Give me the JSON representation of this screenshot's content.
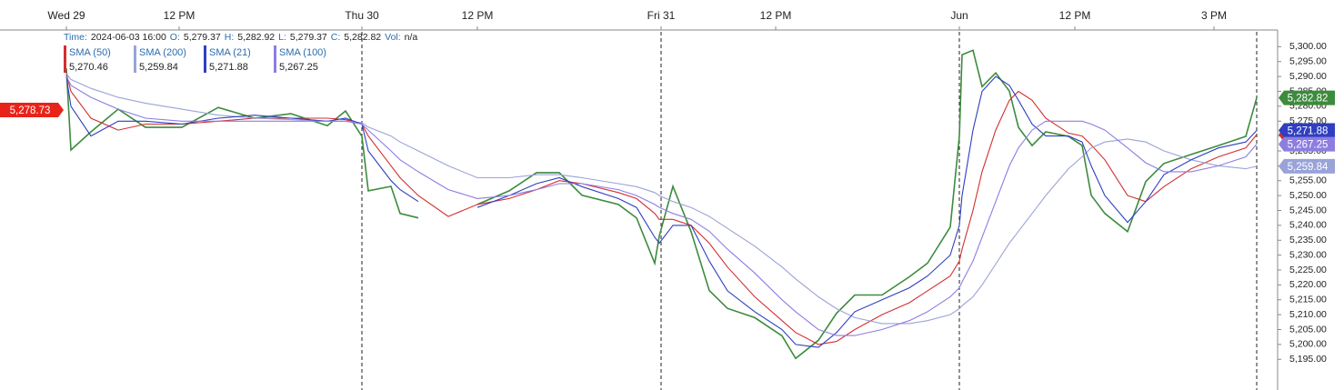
{
  "chart_data": {
    "type": "line",
    "header": {
      "time_label": "Time:",
      "time": "2024-06-03 16:00",
      "fields": [
        {
          "name": "O:",
          "value": "5,279.37"
        },
        {
          "name": "H:",
          "value": "5,282.92"
        },
        {
          "name": "L:",
          "value": "5,279.37"
        },
        {
          "name": "C:",
          "value": "5,282.82"
        },
        {
          "name": "Vol:",
          "value": "n/a"
        }
      ]
    },
    "x": [
      0,
      5,
      27,
      57,
      87,
      127,
      167,
      207,
      247,
      287,
      307,
      325,
      332,
      357,
      367,
      387,
      420,
      452,
      487,
      517,
      542,
      567,
      607,
      627,
      647,
      652,
      667,
      687,
      707,
      727,
      757,
      787,
      802,
      827,
      847,
      867,
      897,
      927,
      947,
      972,
      982,
      985,
      997,
      1007,
      1022,
      1037,
      1047,
      1062,
      1077,
      1102,
      1117,
      1127,
      1142,
      1167,
      1187,
      1207,
      1237,
      1267,
      1297,
      1309
    ],
    "series": [
      {
        "color": "#3d8b3d",
        "value_label": "5,282.82",
        "values": [
          5292.7,
          5265.3,
          5271.4,
          5279,
          5272.9,
          5272.9,
          5279.6,
          5276,
          5277.5,
          5273.5,
          5278.4,
          5269.9,
          5251.6,
          5253.1,
          5244,
          5242.5,
          null,
          5247,
          5251.6,
          5257.7,
          5257.7,
          5250.1,
          5247,
          5242.5,
          5227.3,
          5236.4,
          5253.1,
          5237.9,
          5218.1,
          5212.1,
          5209,
          5202.9,
          5195.3,
          5201.4,
          5210.5,
          5216.6,
          5216.6,
          5222.7,
          5227.3,
          5239.4,
          5269.9,
          5297.3,
          5298.8,
          5286.6,
          5291.2,
          5285.1,
          5272.9,
          5266.8,
          5271.4,
          5269.9,
          5266.8,
          5250.1,
          5244,
          5237.9,
          5254.7,
          5260.8,
          5263.8,
          5266.8,
          5269.9,
          5282.82
        ]
      },
      {
        "name": "SMA (50)",
        "color": "#d32f2f",
        "value_label": "5,270.46",
        "values": [
          5291,
          5285,
          5276,
          5272,
          5274,
          5274,
          5275,
          5276,
          5276,
          5276,
          5275.5,
          5274,
          5270,
          5260,
          5256,
          5250,
          5243,
          5247,
          5249,
          5252,
          5255,
          5254,
          5251,
          5249,
          5244,
          5242,
          5242,
          5240,
          5234,
          5226,
          5216,
          5208,
          5204,
          5200,
          5201,
          5205,
          5210,
          5214,
          5218,
          5223,
          5228,
          5232,
          5245,
          5258,
          5272,
          5282,
          5285,
          5282,
          5276,
          5271,
          5270,
          5267,
          5262,
          5250,
          5248,
          5253,
          5259,
          5263,
          5266,
          5270.46
        ]
      },
      {
        "name": "SMA (200)",
        "color": "#9aa3d8",
        "value_label": "5,259.84",
        "values": [
          5291,
          5289,
          5286,
          5283,
          5281,
          5279,
          5277,
          5276,
          5275.5,
          5275,
          5275,
          5274.5,
          5273,
          5270,
          5268,
          5265,
          5260,
          5256,
          5256,
          5257,
          5257,
          5256,
          5254,
          5253,
          5251,
          5250,
          5248,
          5246,
          5243,
          5239,
          5233,
          5226,
          5222,
          5216,
          5212,
          5209,
          5207,
          5207,
          5208,
          5210,
          5212,
          5213,
          5216,
          5220,
          5227,
          5234,
          5238,
          5244,
          5250,
          5259,
          5263,
          5266,
          5268,
          5269,
          5268,
          5265,
          5262,
          5260,
          5259,
          5259.84
        ]
      },
      {
        "name": "SMA (21)",
        "color": "#2f3fbf",
        "value_label": "5,271.88",
        "values": [
          5290,
          5280,
          5270,
          5275,
          5275,
          5274,
          5276,
          5277,
          5276,
          5275,
          5276,
          5274,
          5265,
          5255,
          5252,
          5248,
          null,
          5246,
          5250,
          5254,
          5256,
          5253,
          5249,
          5246,
          5236,
          5234,
          5240,
          5240,
          5228,
          5218,
          5211,
          5205,
          5200,
          5199,
          5204,
          5211,
          5215,
          5219,
          5223,
          5230,
          5240,
          5250,
          5272,
          5285,
          5290,
          5287,
          5282,
          5274,
          5270,
          5270,
          5268,
          5260,
          5250,
          5241,
          5248,
          5257,
          5262,
          5266,
          5268,
          5271.88
        ]
      },
      {
        "name": "SMA (100)",
        "color": "#8c7ee0",
        "value_label": "5,267.25",
        "values": [
          5290,
          5287,
          5283,
          5279,
          5276,
          5275,
          5275,
          5275,
          5275,
          5275,
          5275,
          5274,
          5272,
          5265,
          5262,
          5258,
          5252,
          5249,
          5250,
          5252,
          5254,
          5254,
          5252,
          5250,
          5247,
          5246,
          5244,
          5242,
          5238,
          5232,
          5224,
          5215,
          5211,
          5205,
          5203,
          5203,
          5205,
          5208,
          5211,
          5216,
          5219,
          5221,
          5228,
          5236,
          5248,
          5260,
          5266,
          5272,
          5275,
          5275,
          5275,
          5274,
          5272,
          5266,
          5261,
          5258,
          5258,
          5260,
          5263,
          5267.25
        ]
      }
    ],
    "crosshair_label": {
      "value": 5278.73,
      "label": "5,278.73"
    },
    "session_breaks": [
      325,
      654,
      982,
      1309
    ],
    "xlim": [
      -73,
      1332
    ],
    "xticks": [
      {
        "value": 0,
        "label": "Wed 29"
      },
      {
        "value": 124,
        "label": "12 PM"
      },
      {
        "value": 325,
        "label": "Thu 30"
      },
      {
        "value": 452,
        "label": "12 PM"
      },
      {
        "value": 654,
        "label": "Fri 31"
      },
      {
        "value": 780,
        "label": "12 PM"
      },
      {
        "value": 982,
        "label": "Jun"
      },
      {
        "value": 1109,
        "label": "12 PM"
      },
      {
        "value": 1262,
        "label": "3 PM"
      }
    ],
    "ylim": [
      5185,
      5305
    ],
    "yticks": [
      {
        "value": 5195,
        "label": "5,195.00"
      },
      {
        "value": 5200,
        "label": "5,200.00"
      },
      {
        "value": 5205,
        "label": "5,205.00"
      },
      {
        "value": 5210,
        "label": "5,210.00"
      },
      {
        "value": 5215,
        "label": "5,215.00"
      },
      {
        "value": 5220,
        "label": "5,220.00"
      },
      {
        "value": 5225,
        "label": "5,225.00"
      },
      {
        "value": 5230,
        "label": "5,230.00"
      },
      {
        "value": 5235,
        "label": "5,235.00"
      },
      {
        "value": 5240,
        "label": "5,240.00"
      },
      {
        "value": 5245,
        "label": "5,245.00"
      },
      {
        "value": 5250,
        "label": "5,250.00"
      },
      {
        "value": 5255,
        "label": "5,255.00"
      },
      {
        "value": 5260,
        "label": "5,260.00"
      },
      {
        "value": 5265,
        "label": "5,265.00"
      },
      {
        "value": 5270,
        "label": "5,270.00"
      },
      {
        "value": 5275,
        "label": "5,275.00"
      },
      {
        "value": 5280,
        "label": "5,280.00"
      },
      {
        "value": 5285,
        "label": "5,285.00"
      },
      {
        "value": 5290,
        "label": "5,290.00"
      },
      {
        "value": 5295,
        "label": "5,295.00"
      },
      {
        "value": 5300,
        "label": "5,300.00"
      }
    ]
  }
}
